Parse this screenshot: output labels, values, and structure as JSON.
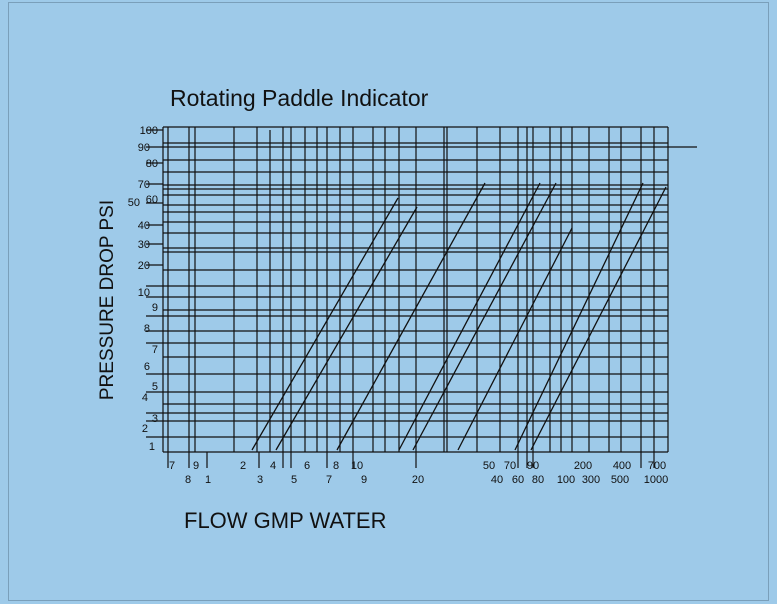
{
  "title": "Rotating Paddle Indicator",
  "y_axis": {
    "label": "PRESSURE DROP PSI",
    "ticks": [
      "100",
      "90",
      "80",
      "70",
      "60",
      "50",
      "40",
      "30",
      "20",
      "10",
      "9",
      "8",
      "7",
      "6",
      "5",
      "4",
      "3",
      "2",
      "1"
    ]
  },
  "x_axis": {
    "label": "FLOW GMP WATER",
    "upper_ticks": [
      "7",
      "9",
      "2",
      "4",
      "6",
      "8",
      "10",
      "50",
      "70",
      "90",
      "200",
      "400",
      "700"
    ],
    "lower_ticks": [
      "8",
      "1",
      "3",
      "5",
      "7",
      "9",
      "20",
      "40",
      "60",
      "80",
      "100",
      "300",
      "500",
      "1000"
    ]
  }
}
